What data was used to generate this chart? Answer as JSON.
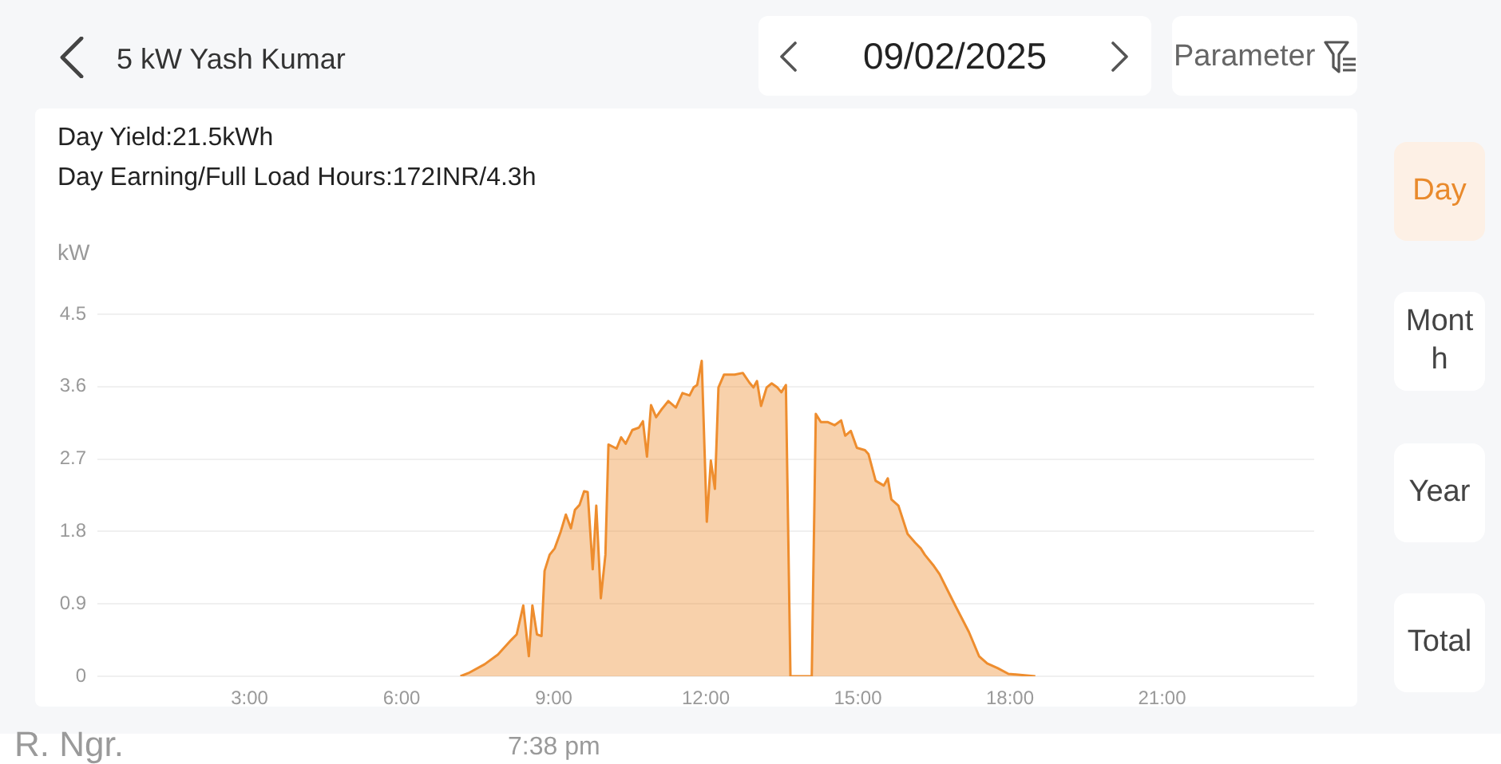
{
  "chart_data": {
    "type": "area",
    "title": "5 kW Yash Kumar",
    "subtitle": "09/02/2025",
    "ylabel": "kW",
    "annotations": [
      "Day Yield:21.5kWh",
      "Day Earning/Full Load Hours:172INR/4.3h",
      "Parameter",
      "Day",
      "Month",
      "Year",
      "Total",
      "R. Ngr.",
      "7:38 pm"
    ],
    "x": [
      7.16,
      7.32,
      7.64,
      7.9,
      8.16,
      8.27,
      8.4,
      8.51,
      8.58,
      8.67,
      8.76,
      8.82,
      8.92,
      9.02,
      9.14,
      9.24,
      9.34,
      9.42,
      9.51,
      9.6,
      9.67,
      9.77,
      9.84,
      9.93,
      10.02,
      10.08,
      10.24,
      10.33,
      10.42,
      10.55,
      10.68,
      10.76,
      10.84,
      10.92,
      11.02,
      11.12,
      11.26,
      11.41,
      11.54,
      11.68,
      11.76,
      11.83,
      11.92,
      12.02,
      12.1,
      12.18,
      12.25,
      12.36,
      12.57,
      12.73,
      12.86,
      12.94,
      13.01,
      13.09,
      13.2,
      13.3,
      13.41,
      13.49,
      13.58,
      13.67,
      14.09,
      14.17,
      14.27,
      14.4,
      14.54,
      14.67,
      14.75,
      14.86,
      14.98,
      15.14,
      15.21,
      15.35,
      15.51,
      15.59,
      15.66,
      15.8,
      15.98,
      16.13,
      16.24,
      16.32,
      16.5,
      16.61,
      16.76,
      16.92,
      17.19,
      17.39,
      17.55,
      17.76,
      17.97,
      18.5
    ],
    "values": [
      0,
      0.04,
      0.15,
      0.27,
      0.45,
      0.52,
      0.88,
      0.25,
      0.88,
      0.52,
      0.5,
      1.31,
      1.51,
      1.59,
      1.8,
      2.01,
      1.84,
      2.07,
      2.13,
      2.3,
      2.29,
      1.33,
      2.12,
      0.97,
      1.51,
      2.88,
      2.83,
      2.97,
      2.89,
      3.06,
      3.09,
      3.17,
      2.73,
      3.37,
      3.22,
      3.31,
      3.42,
      3.34,
      3.52,
      3.49,
      3.59,
      3.62,
      3.92,
      1.92,
      2.68,
      2.33,
      3.59,
      3.75,
      3.75,
      3.77,
      3.65,
      3.59,
      3.67,
      3.36,
      3.59,
      3.64,
      3.59,
      3.53,
      3.62,
      0,
      0,
      3.26,
      3.16,
      3.16,
      3.12,
      3.18,
      2.99,
      3.05,
      2.84,
      2.81,
      2.76,
      2.43,
      2.37,
      2.46,
      2.2,
      2.12,
      1.77,
      1.66,
      1.59,
      1.51,
      1.37,
      1.27,
      1.08,
      0.88,
      0.55,
      0.25,
      0.16,
      0.1,
      0.03,
      0
    ],
    "color": "#ee8d2e",
    "xlim": [
      0,
      24
    ],
    "xticks": [
      {
        "value": 3,
        "label": "3:00"
      },
      {
        "value": 6,
        "label": "6:00"
      },
      {
        "value": 9,
        "label": "9:00"
      },
      {
        "value": 12,
        "label": "12:00"
      },
      {
        "value": 15,
        "label": "15:00"
      },
      {
        "value": 18,
        "label": "18:00"
      },
      {
        "value": 21,
        "label": "21:00"
      }
    ],
    "ylim": [
      0,
      4.5
    ],
    "yticks": [
      0,
      0.9,
      1.8,
      2.7,
      3.6,
      4.5
    ],
    "grid": "y"
  }
}
